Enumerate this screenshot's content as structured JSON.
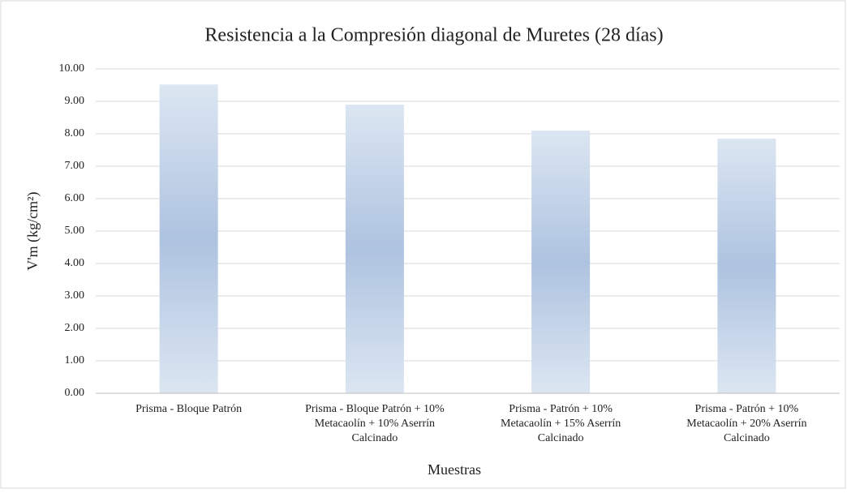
{
  "chart_data": {
    "type": "bar",
    "title": "Resistencia a la Compresión diagonal de Muretes (28 días)",
    "x_label": "Muestras",
    "y_label": "V'm (kg/cm²)",
    "categories": [
      [
        "Prisma - Bloque Patrón"
      ],
      [
        "Prisma - Bloque Patrón + 10%",
        "Metacaolín + 10% Aserrín",
        "Calcinado"
      ],
      [
        "Prisma - Patrón + 10%",
        "Metacaolín + 15% Aserrín",
        "Calcinado"
      ],
      [
        "Prisma - Patrón + 10%",
        "Metacaolín + 20% Aserrín",
        "Calcinado"
      ]
    ],
    "values": [
      9.52,
      8.9,
      8.1,
      7.85
    ],
    "color": "#aec3e0",
    "ylim": [
      0,
      10
    ],
    "yticks": [
      {
        "value": 0,
        "label": "0.00"
      },
      {
        "value": 1,
        "label": "1.00"
      },
      {
        "value": 2,
        "label": "2.00"
      },
      {
        "value": 3,
        "label": "3.00"
      },
      {
        "value": 4,
        "label": "4.00"
      },
      {
        "value": 5,
        "label": "5.00"
      },
      {
        "value": 6,
        "label": "6.00"
      },
      {
        "value": 7,
        "label": "7.00"
      },
      {
        "value": 8,
        "label": "8.00"
      },
      {
        "value": 9,
        "label": "9.00"
      },
      {
        "value": 10,
        "label": "10.00"
      }
    ],
    "grid": true
  }
}
